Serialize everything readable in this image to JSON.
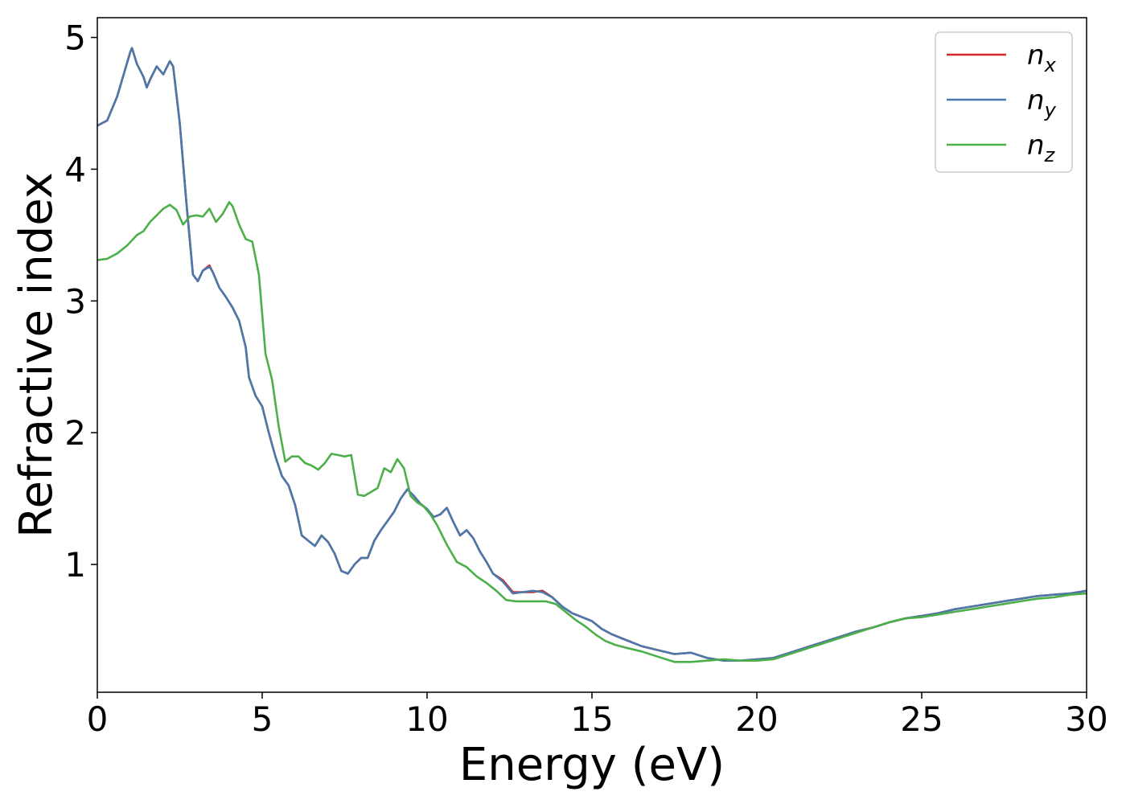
{
  "chart_data": {
    "type": "line",
    "title": "",
    "xlabel": "Energy (eV)",
    "ylabel": "Refractive index",
    "xlim": [
      0,
      30
    ],
    "ylim": [
      0.03,
      5.15
    ],
    "xticks": [
      0,
      5,
      10,
      15,
      20,
      25,
      30
    ],
    "yticks": [
      1,
      2,
      3,
      4,
      5
    ],
    "xtick_labels": [
      "0",
      "5",
      "10",
      "15",
      "20",
      "25",
      "30"
    ],
    "ytick_labels": [
      "1",
      "2",
      "3",
      "4",
      "5"
    ],
    "grid": false,
    "legend_position": "top-right",
    "series": [
      {
        "name": "n_x",
        "legend_base": "n",
        "legend_sub": "x",
        "color": "#d62728",
        "x": [
          0,
          0.3,
          0.6,
          0.8,
          1.0,
          1.05,
          1.2,
          1.4,
          1.5,
          1.6,
          1.8,
          2.0,
          2.2,
          2.3,
          2.5,
          2.7,
          2.9,
          3.05,
          3.2,
          3.4,
          3.5,
          3.7,
          3.9,
          4.1,
          4.3,
          4.5,
          4.6,
          4.8,
          5.0,
          5.2,
          5.4,
          5.6,
          5.8,
          6.0,
          6.2,
          6.4,
          6.6,
          6.8,
          7.0,
          7.2,
          7.4,
          7.6,
          7.8,
          8.0,
          8.2,
          8.4,
          8.6,
          8.8,
          9.0,
          9.2,
          9.4,
          9.6,
          9.8,
          10.0,
          10.2,
          10.4,
          10.6,
          10.8,
          11.0,
          11.2,
          11.4,
          11.6,
          11.8,
          12.0,
          12.3,
          12.6,
          12.9,
          13.2,
          13.5,
          13.8,
          14.1,
          14.4,
          14.7,
          15.0,
          15.3,
          15.6,
          16.0,
          16.5,
          17.0,
          17.5,
          18.0,
          18.5,
          19.0,
          19.5,
          20.0,
          20.5,
          21.0,
          21.5,
          22.0,
          22.5,
          23.0,
          23.5,
          24.0,
          24.5,
          25.0,
          25.5,
          26.0,
          26.5,
          27.0,
          27.5,
          28.0,
          28.5,
          29.0,
          29.5,
          30.0
        ],
        "y": [
          4.33,
          4.37,
          4.55,
          4.72,
          4.89,
          4.92,
          4.8,
          4.7,
          4.62,
          4.68,
          4.78,
          4.72,
          4.82,
          4.78,
          4.35,
          3.75,
          3.2,
          3.15,
          3.23,
          3.27,
          3.22,
          3.1,
          3.03,
          2.95,
          2.85,
          2.65,
          2.42,
          2.28,
          2.2,
          2.0,
          1.82,
          1.67,
          1.6,
          1.45,
          1.22,
          1.18,
          1.14,
          1.22,
          1.17,
          1.08,
          0.95,
          0.93,
          1.0,
          1.05,
          1.05,
          1.18,
          1.26,
          1.33,
          1.4,
          1.5,
          1.57,
          1.52,
          1.46,
          1.42,
          1.36,
          1.38,
          1.43,
          1.32,
          1.22,
          1.26,
          1.2,
          1.1,
          1.02,
          0.93,
          0.88,
          0.79,
          0.79,
          0.79,
          0.8,
          0.75,
          0.68,
          0.63,
          0.6,
          0.57,
          0.51,
          0.47,
          0.43,
          0.38,
          0.35,
          0.32,
          0.33,
          0.29,
          0.27,
          0.27,
          0.28,
          0.29,
          0.33,
          0.37,
          0.41,
          0.45,
          0.49,
          0.52,
          0.56,
          0.59,
          0.61,
          0.63,
          0.66,
          0.68,
          0.7,
          0.72,
          0.74,
          0.76,
          0.77,
          0.78,
          0.8
        ]
      },
      {
        "name": "n_y",
        "legend_base": "n",
        "legend_sub": "y",
        "color": "#4a78ab",
        "x": [
          0,
          0.3,
          0.6,
          0.8,
          1.0,
          1.05,
          1.2,
          1.4,
          1.5,
          1.6,
          1.8,
          2.0,
          2.2,
          2.3,
          2.5,
          2.7,
          2.9,
          3.05,
          3.2,
          3.4,
          3.5,
          3.7,
          3.9,
          4.1,
          4.3,
          4.5,
          4.6,
          4.8,
          5.0,
          5.2,
          5.4,
          5.6,
          5.8,
          6.0,
          6.2,
          6.4,
          6.6,
          6.8,
          7.0,
          7.2,
          7.4,
          7.6,
          7.8,
          8.0,
          8.2,
          8.4,
          8.6,
          8.8,
          9.0,
          9.2,
          9.4,
          9.6,
          9.8,
          10.0,
          10.2,
          10.4,
          10.6,
          10.8,
          11.0,
          11.2,
          11.4,
          11.6,
          11.8,
          12.0,
          12.3,
          12.6,
          12.9,
          13.2,
          13.5,
          13.8,
          14.1,
          14.4,
          14.7,
          15.0,
          15.3,
          15.6,
          16.0,
          16.5,
          17.0,
          17.5,
          18.0,
          18.5,
          19.0,
          19.5,
          20.0,
          20.5,
          21.0,
          21.5,
          22.0,
          22.5,
          23.0,
          23.5,
          24.0,
          24.5,
          25.0,
          25.5,
          26.0,
          26.5,
          27.0,
          27.5,
          28.0,
          28.5,
          29.0,
          29.5,
          30.0
        ],
        "y": [
          4.33,
          4.37,
          4.55,
          4.72,
          4.89,
          4.92,
          4.8,
          4.7,
          4.62,
          4.68,
          4.78,
          4.72,
          4.82,
          4.78,
          4.35,
          3.75,
          3.2,
          3.15,
          3.23,
          3.26,
          3.22,
          3.1,
          3.03,
          2.95,
          2.85,
          2.65,
          2.42,
          2.28,
          2.2,
          2.0,
          1.82,
          1.67,
          1.6,
          1.45,
          1.22,
          1.18,
          1.14,
          1.22,
          1.17,
          1.08,
          0.95,
          0.93,
          1.0,
          1.05,
          1.05,
          1.18,
          1.26,
          1.33,
          1.4,
          1.5,
          1.57,
          1.52,
          1.46,
          1.42,
          1.36,
          1.38,
          1.43,
          1.32,
          1.22,
          1.26,
          1.2,
          1.1,
          1.02,
          0.93,
          0.87,
          0.78,
          0.79,
          0.8,
          0.79,
          0.75,
          0.68,
          0.63,
          0.6,
          0.57,
          0.51,
          0.47,
          0.43,
          0.38,
          0.35,
          0.32,
          0.33,
          0.29,
          0.27,
          0.27,
          0.28,
          0.29,
          0.33,
          0.37,
          0.41,
          0.45,
          0.49,
          0.52,
          0.56,
          0.59,
          0.61,
          0.63,
          0.66,
          0.68,
          0.7,
          0.72,
          0.74,
          0.76,
          0.77,
          0.78,
          0.8
        ]
      },
      {
        "name": "n_z",
        "legend_base": "n",
        "legend_sub": "z",
        "color": "#4daf4a",
        "x": [
          0,
          0.3,
          0.6,
          0.9,
          1.2,
          1.4,
          1.6,
          1.8,
          2.0,
          2.2,
          2.4,
          2.6,
          2.8,
          3.0,
          3.2,
          3.4,
          3.6,
          3.8,
          4.0,
          4.1,
          4.3,
          4.5,
          4.7,
          4.9,
          5.1,
          5.3,
          5.5,
          5.7,
          5.9,
          6.1,
          6.3,
          6.5,
          6.7,
          6.9,
          7.1,
          7.3,
          7.5,
          7.7,
          7.9,
          8.1,
          8.3,
          8.5,
          8.7,
          8.9,
          9.1,
          9.3,
          9.5,
          9.7,
          9.9,
          10.1,
          10.3,
          10.6,
          10.9,
          11.2,
          11.5,
          11.8,
          12.1,
          12.4,
          12.7,
          13.0,
          13.3,
          13.6,
          13.9,
          14.2,
          14.5,
          14.8,
          15.1,
          15.4,
          15.7,
          16.0,
          16.5,
          17.0,
          17.5,
          18.0,
          18.5,
          19.0,
          19.5,
          20.0,
          20.5,
          21.0,
          21.5,
          22.0,
          22.5,
          23.0,
          23.5,
          24.0,
          24.5,
          25.0,
          25.5,
          26.0,
          26.5,
          27.0,
          27.5,
          28.0,
          28.5,
          29.0,
          29.5,
          30.0
        ],
        "y": [
          3.31,
          3.32,
          3.36,
          3.42,
          3.5,
          3.53,
          3.6,
          3.65,
          3.7,
          3.73,
          3.69,
          3.58,
          3.64,
          3.65,
          3.64,
          3.7,
          3.6,
          3.66,
          3.75,
          3.72,
          3.58,
          3.47,
          3.45,
          3.2,
          2.6,
          2.4,
          2.05,
          1.78,
          1.82,
          1.82,
          1.77,
          1.75,
          1.72,
          1.77,
          1.84,
          1.83,
          1.82,
          1.83,
          1.53,
          1.52,
          1.55,
          1.58,
          1.73,
          1.7,
          1.8,
          1.73,
          1.52,
          1.47,
          1.44,
          1.38,
          1.3,
          1.15,
          1.02,
          0.98,
          0.91,
          0.86,
          0.8,
          0.73,
          0.72,
          0.72,
          0.72,
          0.72,
          0.7,
          0.64,
          0.58,
          0.53,
          0.47,
          0.42,
          0.39,
          0.37,
          0.34,
          0.3,
          0.26,
          0.26,
          0.27,
          0.28,
          0.27,
          0.27,
          0.28,
          0.32,
          0.36,
          0.4,
          0.44,
          0.48,
          0.52,
          0.56,
          0.59,
          0.6,
          0.62,
          0.64,
          0.66,
          0.68,
          0.7,
          0.72,
          0.74,
          0.75,
          0.77,
          0.78
        ]
      }
    ]
  }
}
